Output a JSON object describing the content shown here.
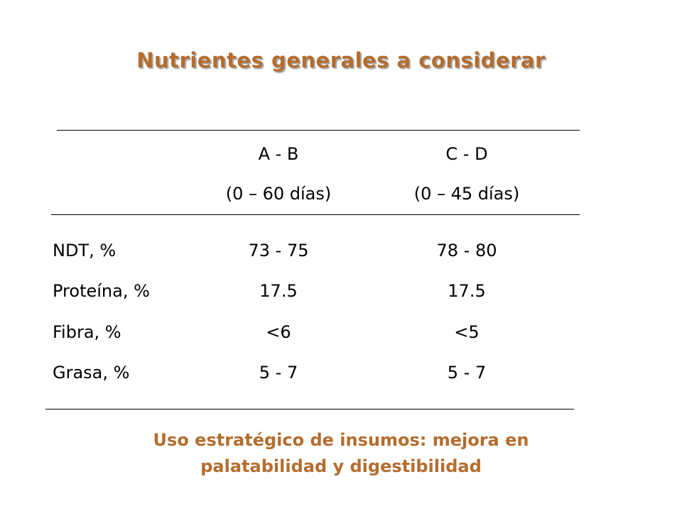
{
  "title": "Nutrientes generales a considerar",
  "table": {
    "headers": [
      {
        "group": "A - B",
        "range": "(0 – 60 días)"
      },
      {
        "group": "C - D",
        "range": "(0 – 45 días)"
      }
    ],
    "rows": [
      {
        "label": "NDT, %",
        "values": [
          "73 - 75",
          "78  - 80"
        ]
      },
      {
        "label": "Proteína, %",
        "values": [
          "17.5",
          "17.5"
        ]
      },
      {
        "label": "Fibra, %",
        "values": [
          "<6",
          "<5"
        ]
      },
      {
        "label": "Grasa, %",
        "values": [
          "5 - 7",
          "5 - 7"
        ]
      }
    ]
  },
  "footer": {
    "line1": "Uso estratégico de insumos: mejora en",
    "line2": "palatabilidad y digestibilidad"
  },
  "colors": {
    "accent": "#b46d2e"
  }
}
